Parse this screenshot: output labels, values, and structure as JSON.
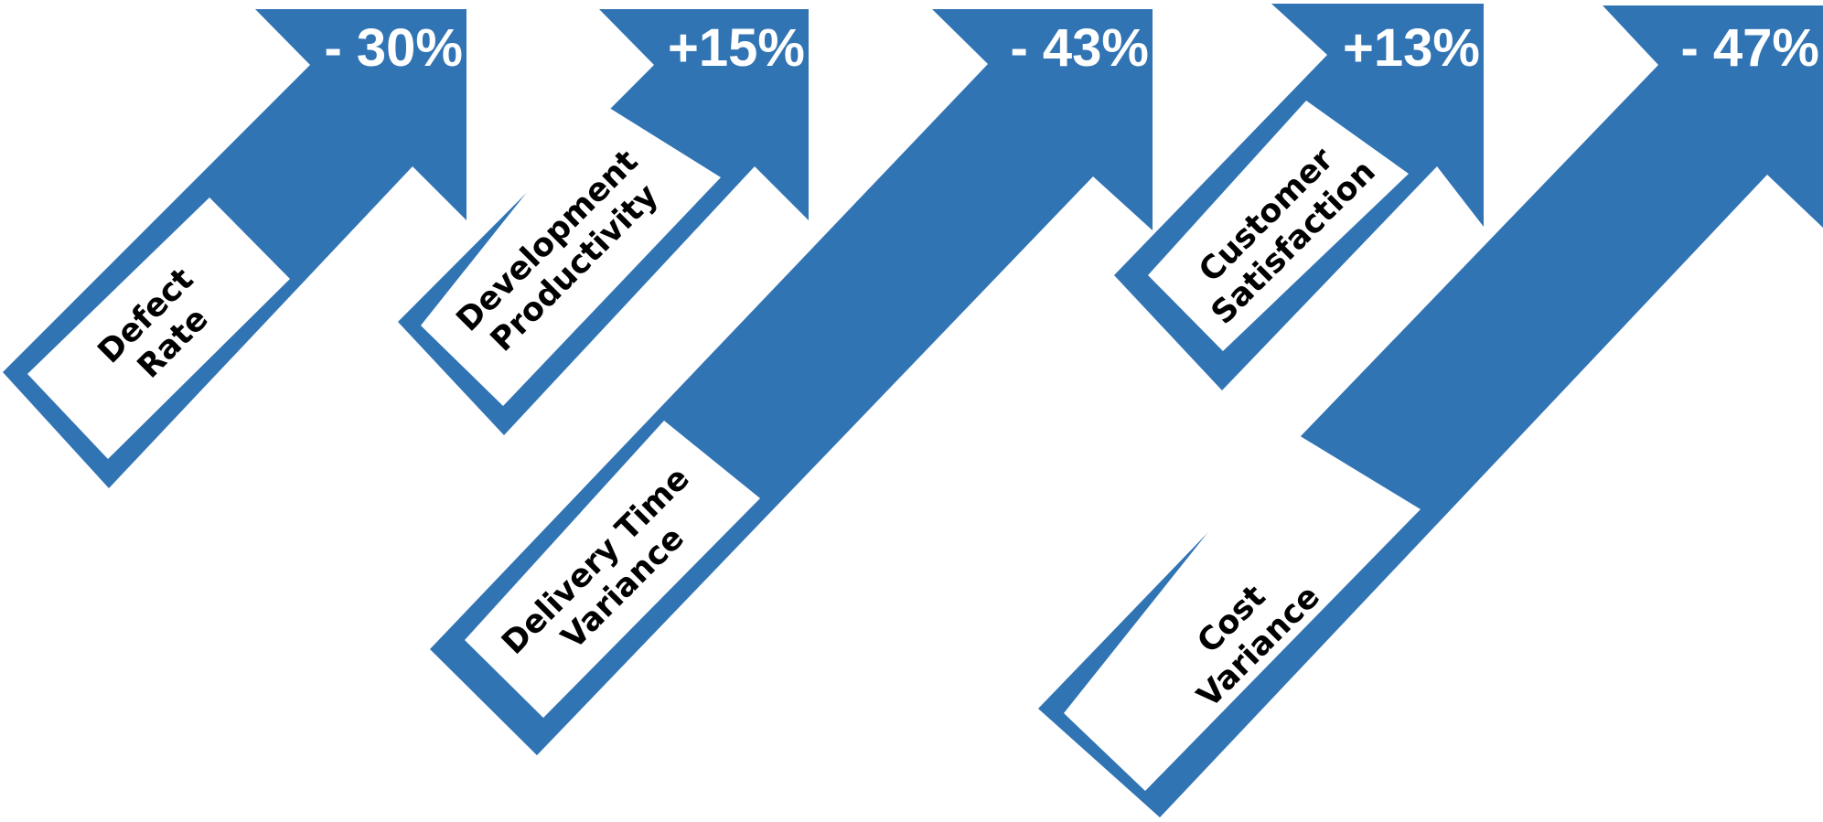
{
  "accent_color": "#3174b4",
  "arrows": [
    {
      "label_line1": "Defect",
      "label_line2": "Rate",
      "change": "- 30%"
    },
    {
      "label_line1": "Development",
      "label_line2": "Productivity",
      "change": "+15%"
    },
    {
      "label_line1": "Delivery Time",
      "label_line2": "Variance",
      "change": "- 43%"
    },
    {
      "label_line1": "Customer",
      "label_line2": "Satisfaction",
      "change": "+13%"
    },
    {
      "label_line1": "Cost",
      "label_line2": "Variance",
      "change": "- 47%"
    }
  ]
}
